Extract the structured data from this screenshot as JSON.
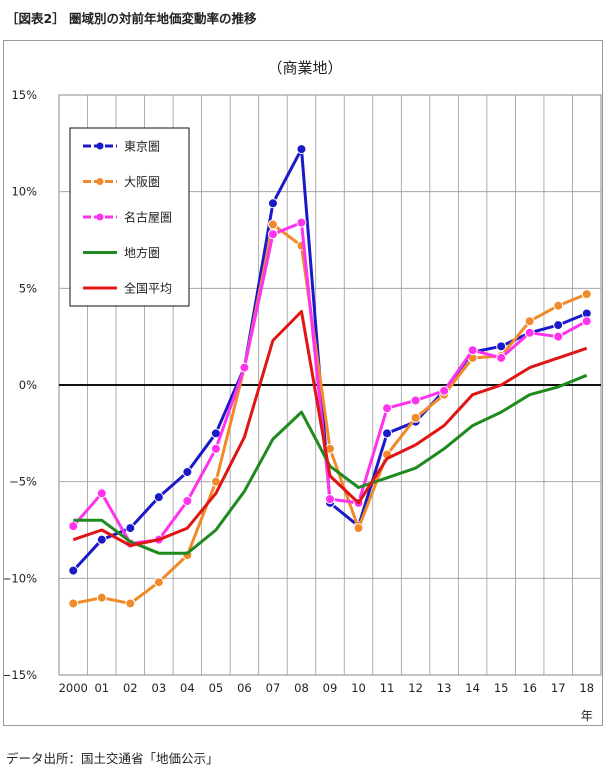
{
  "figure_title": "［図表2］ 圏域別の対前年地価変動率の推移",
  "source_note": "データ出所：国土交通省「地価公示」",
  "chart_data": {
    "type": "line",
    "title": "（商業地）",
    "x_unit_label": "年",
    "categories": [
      "2000",
      "01",
      "02",
      "03",
      "04",
      "05",
      "06",
      "07",
      "08",
      "09",
      "10",
      "11",
      "12",
      "13",
      "14",
      "15",
      "16",
      "17",
      "18"
    ],
    "y_ticks": [
      "15%",
      "10%",
      "5%",
      "0%",
      "−5%",
      "−10%",
      "−15%"
    ],
    "ylim": [
      -15,
      15
    ],
    "grid": true,
    "legend_position": "top-left",
    "zero_line": true,
    "series": [
      {
        "name": "東京圏",
        "color": "#1a1ac8",
        "marker": true,
        "dashed_legend": true,
        "values": [
          -9.6,
          -8.0,
          -7.4,
          -5.8,
          -4.5,
          -2.5,
          0.9,
          9.4,
          12.2,
          -6.1,
          -7.3,
          -2.5,
          -1.9,
          -0.3,
          1.7,
          2.0,
          2.7,
          3.1,
          3.7
        ]
      },
      {
        "name": "大阪圏",
        "color": "#f08a2a",
        "marker": true,
        "dashed_legend": true,
        "values": [
          -11.3,
          -11.0,
          -11.3,
          -10.2,
          -8.8,
          -5.0,
          0.9,
          8.3,
          7.2,
          -3.3,
          -7.4,
          -3.6,
          -1.7,
          -0.5,
          1.4,
          1.5,
          3.3,
          4.1,
          4.7
        ]
      },
      {
        "name": "名古屋圏",
        "color": "#ff33ee",
        "marker": true,
        "dashed_legend": true,
        "values": [
          -7.3,
          -5.6,
          -8.2,
          -8.0,
          -6.0,
          -3.3,
          0.9,
          7.8,
          8.4,
          -5.9,
          -6.1,
          -1.2,
          -0.8,
          -0.3,
          1.8,
          1.4,
          2.7,
          2.5,
          3.3
        ]
      },
      {
        "name": "地方圏",
        "color": "#1f8a1f",
        "marker": false,
        "dashed_legend": false,
        "values": [
          -7.0,
          -7.0,
          -8.1,
          -8.7,
          -8.7,
          -7.5,
          -5.5,
          -2.8,
          -1.4,
          -4.2,
          -5.3,
          -4.8,
          -4.3,
          -3.3,
          -2.1,
          -1.4,
          -0.5,
          -0.1,
          0.5
        ]
      },
      {
        "name": "全国平均",
        "color": "#e01515",
        "marker": false,
        "dashed_legend": false,
        "values": [
          -8.0,
          -7.5,
          -8.3,
          -8.0,
          -7.4,
          -5.6,
          -2.7,
          2.3,
          3.8,
          -4.7,
          -6.1,
          -3.8,
          -3.1,
          -2.1,
          -0.5,
          0.0,
          0.9,
          1.4,
          1.9
        ]
      }
    ]
  }
}
